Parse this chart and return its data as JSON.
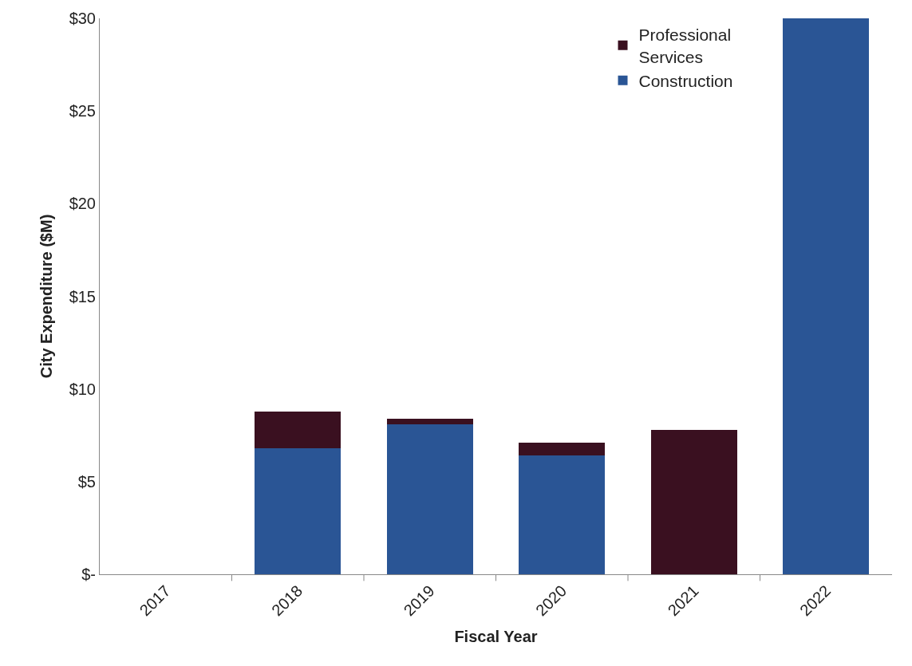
{
  "chart_data": {
    "type": "bar",
    "stacked": true,
    "xlabel": "Fiscal Year",
    "ylabel": "City Expenditure ($M)",
    "categories": [
      "2017",
      "2018",
      "2019",
      "2020",
      "2021",
      "2022"
    ],
    "series": [
      {
        "name": "Construction",
        "color": "#2a5595",
        "values": [
          0,
          6.8,
          8.1,
          6.4,
          0,
          30
        ]
      },
      {
        "name": "Professional Services",
        "color": "#3a1020",
        "values": [
          0,
          2.0,
          0.3,
          0.7,
          7.8,
          0
        ]
      }
    ],
    "ylim": [
      0,
      30
    ],
    "yticks": [
      {
        "value": 0,
        "label": "$-"
      },
      {
        "value": 5,
        "label": "$5"
      },
      {
        "value": 10,
        "label": "$10"
      },
      {
        "value": 15,
        "label": "$15"
      },
      {
        "value": 20,
        "label": "$20"
      },
      {
        "value": 25,
        "label": "$25"
      },
      {
        "value": 30,
        "label": "$30"
      }
    ],
    "legend": "top right"
  }
}
